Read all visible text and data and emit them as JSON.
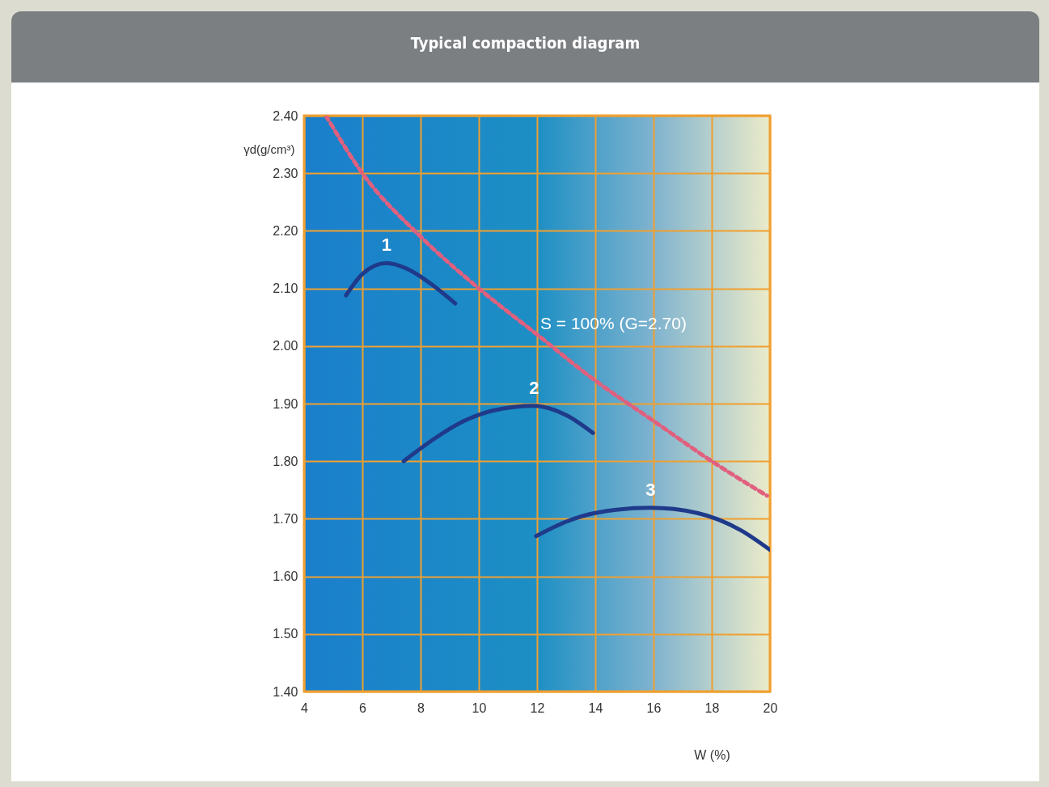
{
  "chart_data": {
    "type": "line",
    "title": "Typical compaction diagram",
    "xlabel": "W (%)",
    "ylabel": "γd(g/cm³)",
    "xlim": [
      4,
      20
    ],
    "xticks": [
      4,
      6,
      8,
      10,
      12,
      14,
      16,
      18,
      20
    ],
    "ylim": [
      1.4,
      2.4
    ],
    "yticks": [
      {
        "value": 1.4,
        "label": "1.40"
      },
      {
        "value": 1.5,
        "label": "1.50"
      },
      {
        "value": 1.6,
        "label": "1.60"
      },
      {
        "value": 1.7,
        "label": "1.70"
      },
      {
        "value": 1.8,
        "label": "1.80"
      },
      {
        "value": 1.9,
        "label": "1.90"
      },
      {
        "value": 2.0,
        "label": "2.00"
      },
      {
        "value": 2.1,
        "label": "2.10"
      },
      {
        "value": 2.2,
        "label": "2.20"
      },
      {
        "value": 2.3,
        "label": "2.30"
      },
      {
        "value": 2.4,
        "label": "2.40"
      }
    ],
    "grid": true,
    "legend": false,
    "marker": "none",
    "series": [
      {
        "name": "1",
        "color": "#1f3a8a",
        "line_style": "solid",
        "x": [
          5.44,
          6.0,
          6.83,
          7.5,
          8.3,
          9.19
        ],
        "values": [
          2.088,
          2.125,
          2.144,
          2.135,
          2.11,
          2.074
        ]
      },
      {
        "name": "2",
        "color": "#1f3a8a",
        "line_style": "solid",
        "x": [
          7.42,
          8.5,
          9.5,
          10.5,
          11.9,
          13.0,
          13.92
        ],
        "values": [
          1.8,
          1.84,
          1.87,
          1.888,
          1.896,
          1.88,
          1.849
        ]
      },
      {
        "name": "3",
        "color": "#1f3a8a",
        "line_style": "solid",
        "x": [
          11.97,
          13,
          14,
          15.9,
          17.5,
          19,
          20
        ],
        "values": [
          1.67,
          1.695,
          1.71,
          1.719,
          1.71,
          1.68,
          1.646
        ]
      },
      {
        "color": "#e0607e",
        "line_style": "dashed",
        "x": [
          4.75,
          6,
          8,
          10,
          12,
          14,
          16,
          18,
          19.9
        ],
        "values": [
          2.4,
          2.3,
          2.19,
          2.1,
          2.02,
          1.94,
          1.87,
          1.8,
          1.74
        ]
      }
    ],
    "annotations": [
      "S = 100% (G=2.70)"
    ]
  }
}
